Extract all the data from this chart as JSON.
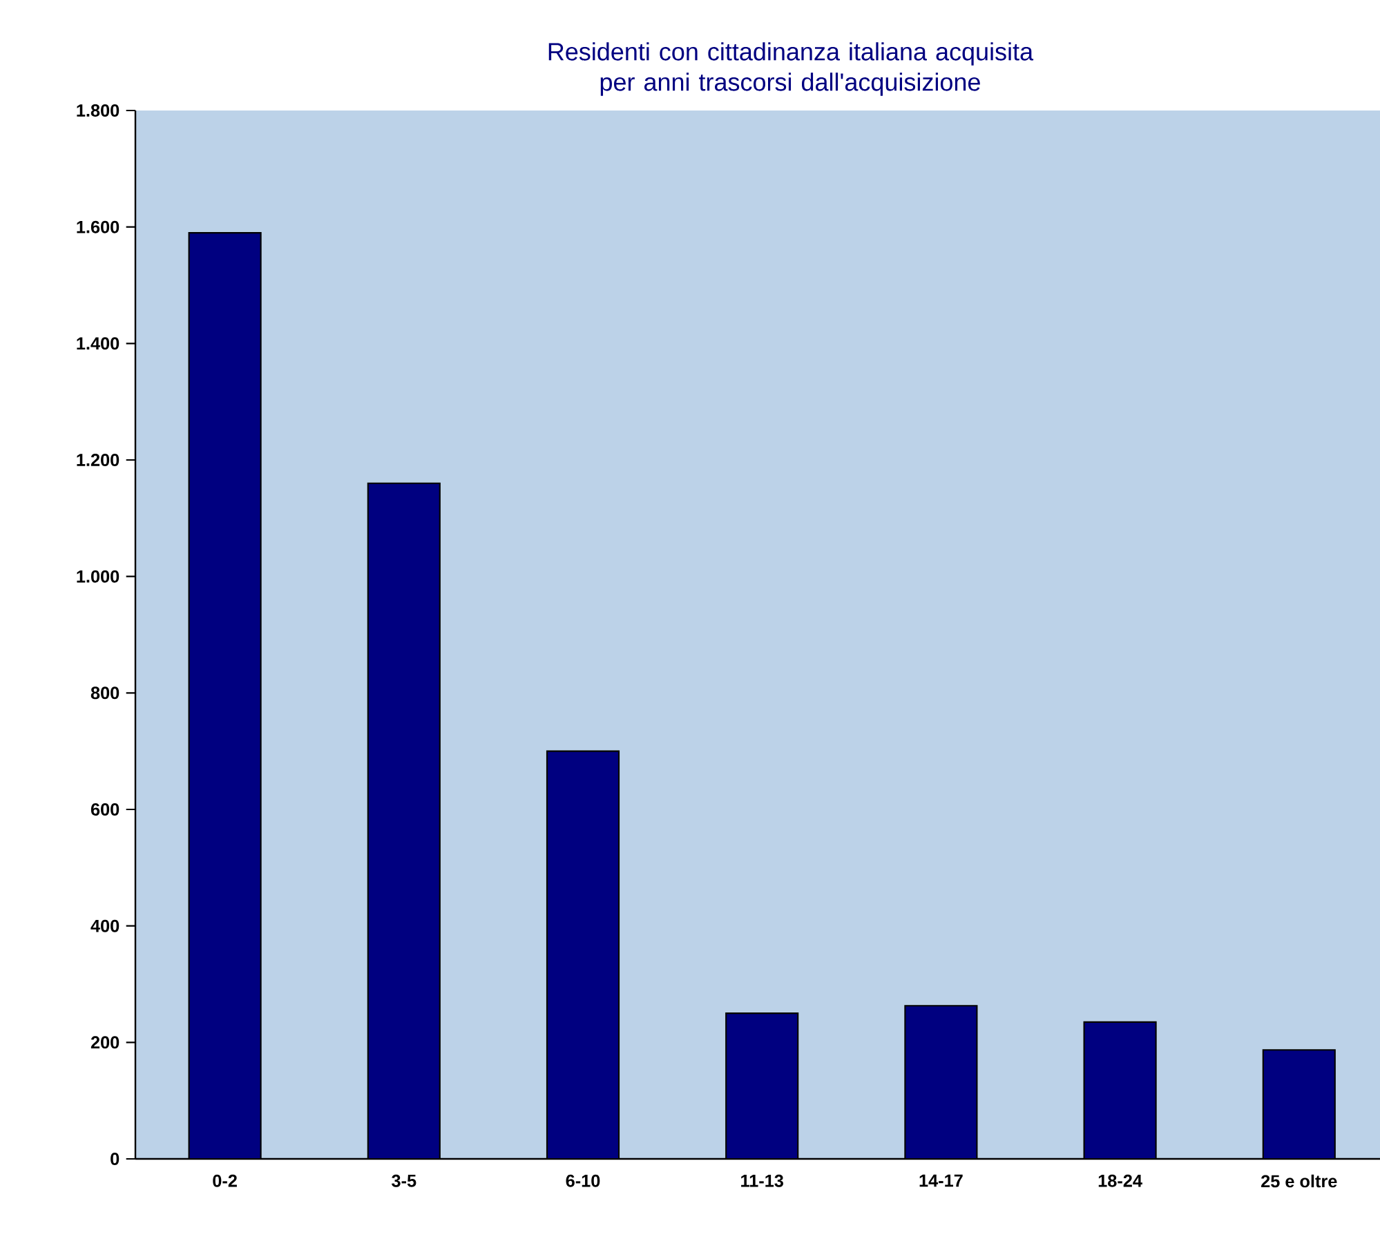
{
  "chart_data": {
    "type": "bar",
    "title": "Residenti con cittadinanza italiana acquisita per anni trascorsi dall'acquisizione",
    "categories": [
      "0-2",
      "3-5",
      "6-10",
      "11-13",
      "14-17",
      "18-24",
      "25 e oltre"
    ],
    "values": [
      1590,
      1160,
      700,
      250,
      263,
      235,
      187
    ],
    "color": "#000080",
    "ylim": [
      0,
      1800
    ],
    "yticks": [
      0,
      200,
      400,
      600,
      800,
      {
        "value": 1000,
        "label": "1.000"
      },
      {
        "value": 1200,
        "label": "1.200"
      },
      {
        "value": 1400,
        "label": "1.400"
      },
      {
        "value": 1600,
        "label": "1.600"
      },
      {
        "value": 1800,
        "label": "1.800"
      }
    ],
    "grid": false
  }
}
